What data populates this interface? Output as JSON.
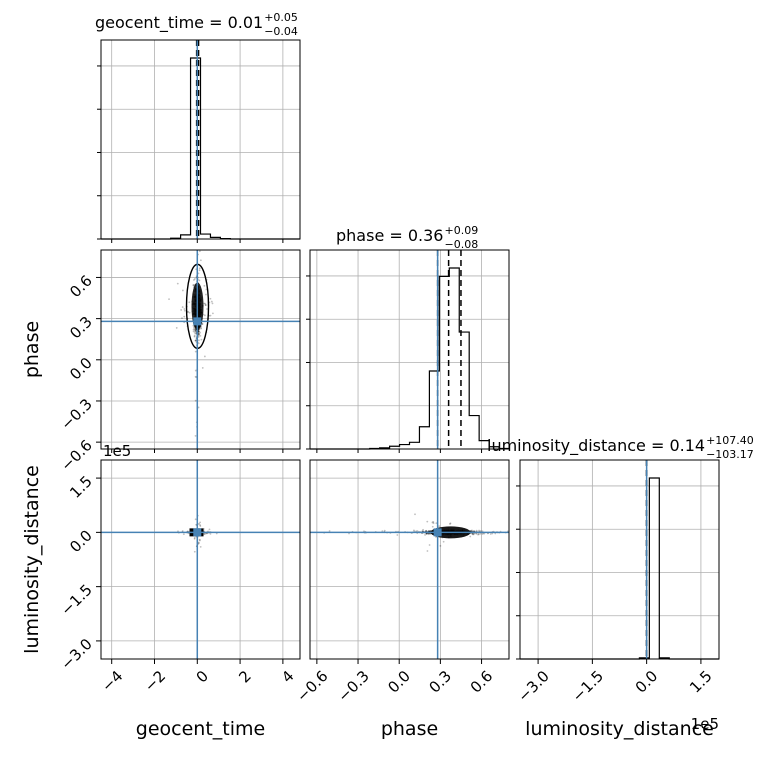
{
  "colors": {
    "truth": "#4682b4",
    "hist": "#000000",
    "grid": "#b0b0b0",
    "samples": "#000000"
  },
  "chart_data": {
    "type": "corner",
    "grid": true,
    "parameters": [
      "geocent_time",
      "phase",
      "luminosity_distance"
    ],
    "titles": [
      {
        "name": "geocent_time",
        "value": "0.01",
        "plus": "+0.05",
        "minus": "−0.04"
      },
      {
        "name": "phase",
        "value": "0.36",
        "plus": "+0.09",
        "minus": "−0.08"
      },
      {
        "name": "luminosity_distance",
        "value": "0.14",
        "plus": "+107.40",
        "minus": "−103.17"
      }
    ],
    "truths": [
      0.0,
      0.28,
      0.0
    ],
    "quantiles": {
      "geocent_time": [
        -0.03,
        0.01,
        0.06
      ],
      "phase": [
        0.28,
        0.36,
        0.45
      ],
      "luminosity_distance": [
        -103.17,
        0.14,
        107.54
      ]
    },
    "ranges": {
      "geocent_time": [
        -4.5,
        4.8
      ],
      "phase": [
        -0.65,
        0.8
      ],
      "luminosity_distance": [
        -350000,
        200000
      ]
    },
    "ticks": {
      "geocent_time": [
        -4,
        -2,
        0,
        2,
        4
      ],
      "geocent_time_labels": [
        "−4",
        "−2",
        "0",
        "2",
        "4"
      ],
      "phase": [
        -0.6,
        -0.3,
        0.0,
        0.3,
        0.6
      ],
      "phase_labels": [
        "−0.6",
        "−0.3",
        "0.0",
        "0.3",
        "0.6"
      ],
      "luminosity_distance": [
        -300000,
        -150000,
        0,
        150000
      ],
      "luminosity_distance_labels": [
        "−3.0",
        "−1.5",
        "0.0",
        "1.5"
      ],
      "luminosity_distance_offset": "1e5"
    },
    "histograms": {
      "geocent_time": {
        "edges": [
          -4.5,
          -4.035,
          -3.57,
          -3.105,
          -2.64,
          -2.175,
          -1.71,
          -1.245,
          -0.78,
          -0.315,
          0.15,
          0.615,
          1.08,
          1.545,
          2.01,
          2.475,
          2.94,
          3.405,
          3.87,
          4.335,
          4.8
        ],
        "counts": [
          0,
          0,
          0,
          0,
          0,
          0,
          0,
          2,
          10,
          440,
          12,
          4,
          1,
          0,
          0,
          0,
          0,
          0,
          0,
          0
        ]
      },
      "phase": {
        "edges": [
          -0.65,
          -0.5775,
          -0.505,
          -0.4325,
          -0.36,
          -0.2875,
          -0.215,
          -0.1425,
          -0.07,
          0.0025,
          0.075,
          0.1475,
          0.22,
          0.2925,
          0.365,
          0.4375,
          0.51,
          0.5825,
          0.655,
          0.7275,
          0.8
        ],
        "counts": [
          0,
          0,
          0,
          0,
          0,
          0,
          1,
          2,
          5,
          8,
          12,
          40,
          140,
          310,
          325,
          210,
          60,
          15,
          4,
          1
        ]
      },
      "luminosity_distance": {
        "edges": [
          -350000,
          -322500,
          -295000,
          -267500,
          -240000,
          -212500,
          -185000,
          -157500,
          -130000,
          -102500,
          -75000,
          -47500,
          -20000,
          7500,
          35000,
          62500,
          90000,
          117500,
          145000,
          172500,
          200000
        ],
        "counts": [
          0,
          0,
          0,
          0,
          0,
          0,
          0,
          0,
          0,
          0,
          0,
          0,
          3,
          480,
          3,
          0,
          0,
          0,
          0,
          0
        ]
      }
    }
  }
}
